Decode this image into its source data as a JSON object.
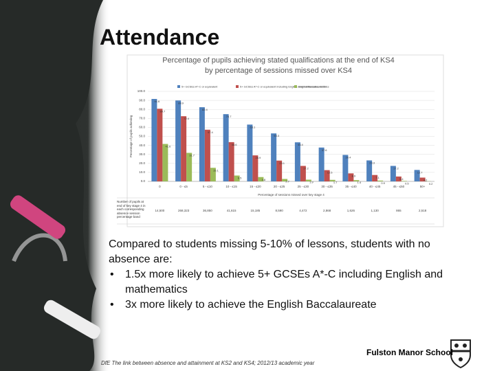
{
  "title": "Attendance",
  "body": {
    "intro": "Compared to students missing 5-10% of lessons, students with no absence are:",
    "bullets": [
      "1.5x more likely to achieve 5+ GCSEs A*-C including English and mathematics",
      "3x more likely to achieve the English Baccalaureate"
    ]
  },
  "school": "Fulston Manor School",
  "source": "DfE The link between absence and attainment at KS2 and KS4; 2012/13 academic year",
  "pupil_table": {
    "label": "Number of pupils at end of key stage 4 in each corresponding absence session percentage band",
    "values": [
      "14,500",
      "268,323",
      "36,850",
      "41,615",
      "15,185",
      "8,590",
      "4,472",
      "2,868",
      "1,626",
      "1,130",
      "865",
      "2,518"
    ]
  },
  "chart_data": {
    "type": "bar",
    "title": "Percentage of pupils achieving stated qualifications at the end of KS4 by percentage of sessions missed over KS4",
    "x_label": "Percentage of sessions missed over key stage 4",
    "y_label": "Percentage of pupils achieving",
    "categories": [
      "0",
      "0 - ≤5",
      "5 - ≤10",
      "10 - ≤15",
      "15 - ≤20",
      "20 - ≤25",
      "25 - ≤30",
      "30 - ≤35",
      "35 - ≤40",
      "40 - ≤45",
      "45 - ≤50",
      "50+"
    ],
    "series": [
      {
        "name": "5+ GCSEs A*-C or equivalent",
        "color": "#4f81bd",
        "values": [
          91.6,
          89.9,
          82.4,
          74.7,
          63.1,
          53.3,
          43.4,
          37.6,
          29.4,
          23.3,
          17.2,
          12.7
        ]
      },
      {
        "name": "5+ GCSEs A*-C or equivalent including English and mathematics GCSEs",
        "color": "#c0504d",
        "values": [
          80.7,
          72.4,
          57.4,
          43.6,
          28.9,
          23.1,
          17.2,
          12.5,
          8.9,
          7.1,
          5.4,
          4.2
        ]
      },
      {
        "name": "English Baccalaureate",
        "color": "#9bbb59",
        "values": [
          41.6,
          31.7,
          15.1,
          6.5,
          4.8,
          2.7,
          1.9,
          1.7,
          1.4,
          0.9,
          0.5,
          0.2
        ]
      }
    ],
    "ylim": [
      0,
      100
    ],
    "yticks": [
      {
        "value": 0,
        "label": "0.0"
      },
      {
        "value": 10,
        "label": "10.0"
      },
      {
        "value": 20,
        "label": "20.0"
      },
      {
        "value": 30,
        "label": "30.0"
      },
      {
        "value": 40,
        "label": "40.0"
      },
      {
        "value": 50,
        "label": "50.0"
      },
      {
        "value": 60,
        "label": "60.0"
      },
      {
        "value": 70,
        "label": "70.0"
      },
      {
        "value": 80,
        "label": "80.0"
      },
      {
        "value": 90,
        "label": "90.0"
      },
      {
        "value": 100,
        "label": "100.0"
      }
    ],
    "grid": true
  }
}
